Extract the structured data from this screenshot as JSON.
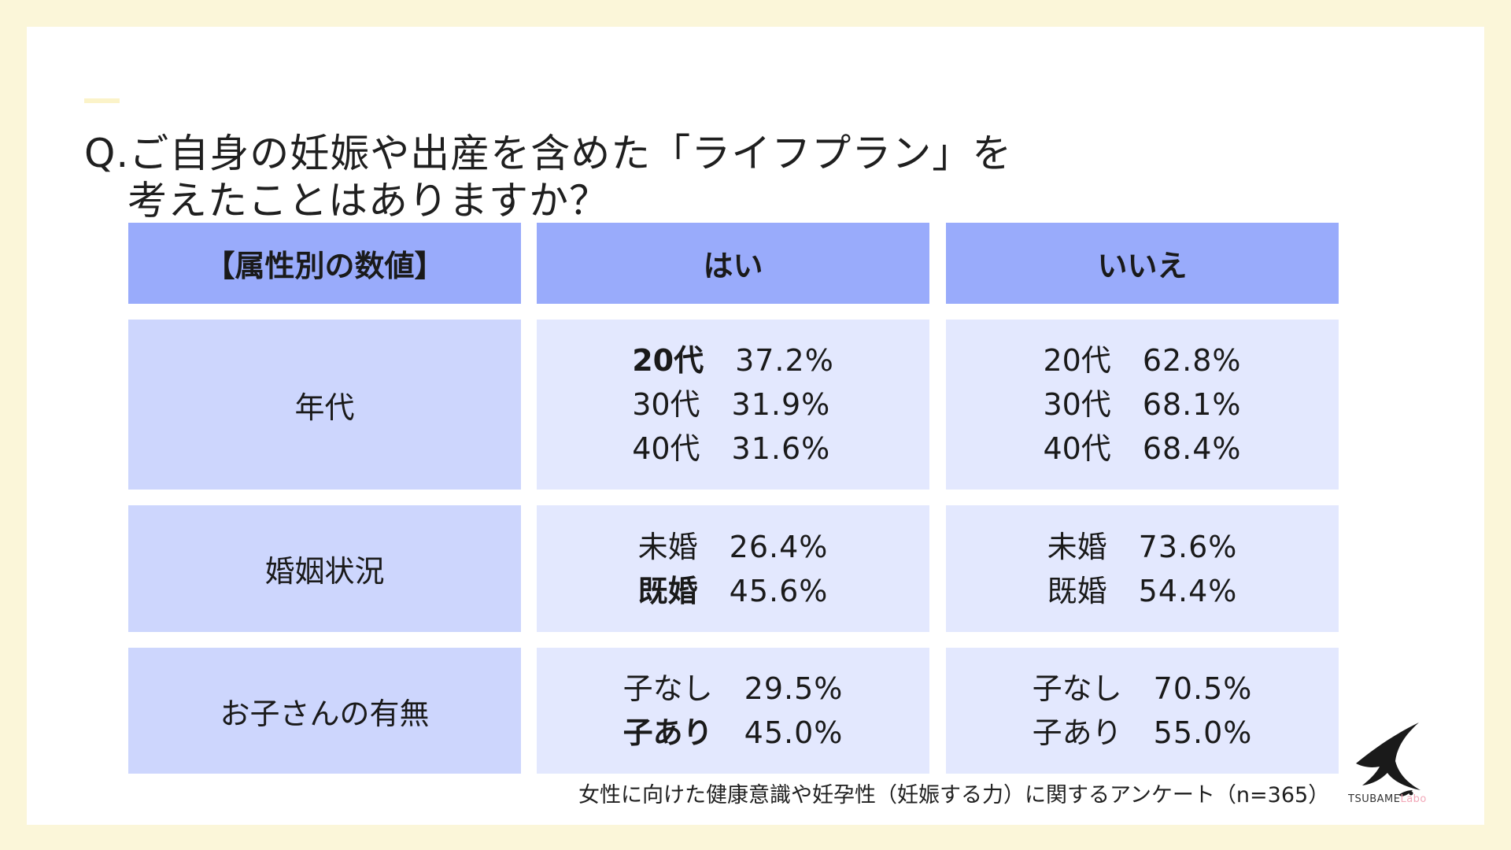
{
  "question": {
    "line1": "Q.ご自身の妊娠や出産を含めた「ライフプラン」を",
    "line2": "考えたことはありますか？"
  },
  "table": {
    "headers": [
      "【属性別の数値】",
      "はい",
      "いいえ"
    ],
    "rows": [
      {
        "label": "年代",
        "yes": [
          {
            "key": "20代",
            "value": "37.2%"
          },
          {
            "key": "30代",
            "value": "31.9%"
          },
          {
            "key": "40代",
            "value": "31.6%"
          }
        ],
        "no": [
          {
            "key": "20代",
            "value": "62.8%"
          },
          {
            "key": "30代",
            "value": "68.1%"
          },
          {
            "key": "40代",
            "value": "68.4%"
          }
        ]
      },
      {
        "label": "婚姻状況",
        "yes": [
          {
            "key": "未婚",
            "value": "26.4%"
          },
          {
            "key": "既婚",
            "value": "45.6%"
          }
        ],
        "no": [
          {
            "key": "未婚",
            "value": "73.6%"
          },
          {
            "key": "既婚",
            "value": "54.4%"
          }
        ]
      },
      {
        "label": "お子さんの有無",
        "yes": [
          {
            "key": "子なし",
            "value": "29.5%"
          },
          {
            "key": "子あり",
            "value": "45.0%"
          }
        ],
        "no": [
          {
            "key": "子なし",
            "value": "70.5%"
          },
          {
            "key": "子あり",
            "value": "55.0%"
          }
        ]
      }
    ]
  },
  "footnote": "女性に向けた健康意識や妊孕性（妊娠する力）に関するアンケート（n=365）",
  "logo": {
    "name": "TSUBAME",
    "suffix": "Labo",
    "icon": "swallow-bird-icon"
  },
  "colors": {
    "header": "#99abfb",
    "label": "#cdd6fd",
    "value": "#e3e8fe",
    "background": "#fbf6d9"
  }
}
